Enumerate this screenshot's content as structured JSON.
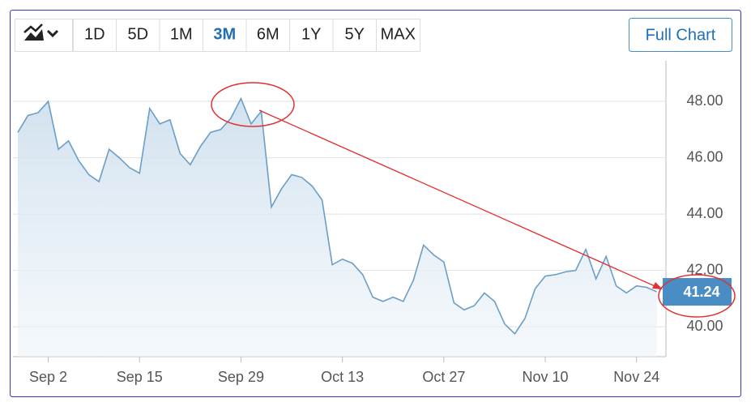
{
  "toolbar": {
    "ranges": [
      "1D",
      "5D",
      "1M",
      "3M",
      "6M",
      "1Y",
      "5Y",
      "MAX"
    ],
    "active_range": "3M",
    "full_chart": "Full Chart"
  },
  "chart_data": {
    "type": "line",
    "color": "#6a9ec6",
    "categories": [
      null,
      null,
      null,
      "Sep 2",
      null,
      null,
      null,
      null,
      null,
      null,
      null,
      null,
      "Sep 15",
      null,
      null,
      null,
      null,
      null,
      null,
      null,
      null,
      null,
      "Sep 29",
      null,
      null,
      null,
      null,
      null,
      null,
      null,
      null,
      null,
      "Oct 13",
      null,
      null,
      null,
      null,
      null,
      null,
      null,
      null,
      null,
      "Oct 27",
      null,
      null,
      null,
      null,
      null,
      null,
      null,
      null,
      null,
      "Nov 10",
      null,
      null,
      null,
      null,
      null,
      null,
      null,
      null,
      "Nov 24",
      null,
      null
    ],
    "values": [
      46.9,
      47.5,
      47.6,
      48.0,
      46.3,
      46.6,
      45.9,
      45.4,
      45.15,
      46.3,
      46.0,
      45.65,
      45.45,
      47.75,
      47.2,
      47.35,
      46.15,
      45.75,
      46.4,
      46.9,
      47.0,
      47.4,
      48.1,
      47.2,
      47.65,
      44.25,
      44.9,
      45.4,
      45.3,
      45.0,
      44.5,
      42.2,
      42.4,
      42.25,
      41.85,
      41.05,
      40.9,
      41.05,
      40.9,
      41.65,
      42.9,
      42.55,
      42.3,
      40.85,
      40.6,
      40.75,
      41.2,
      40.9,
      40.1,
      39.75,
      40.3,
      41.35,
      41.8,
      41.85,
      41.95,
      42.0,
      42.75,
      41.7,
      42.5,
      41.45,
      41.2,
      41.45,
      41.4,
      41.24
    ],
    "last_price": 41.24,
    "ylim": [
      38.94,
      49.44
    ],
    "yticks": [
      {
        "value": 40,
        "label": "40.00"
      },
      {
        "value": 42,
        "label": "42.00"
      },
      {
        "value": 44,
        "label": "44.00"
      },
      {
        "value": 46,
        "label": "46.00"
      },
      {
        "value": 48,
        "label": "48.00"
      }
    ],
    "grid": true
  }
}
